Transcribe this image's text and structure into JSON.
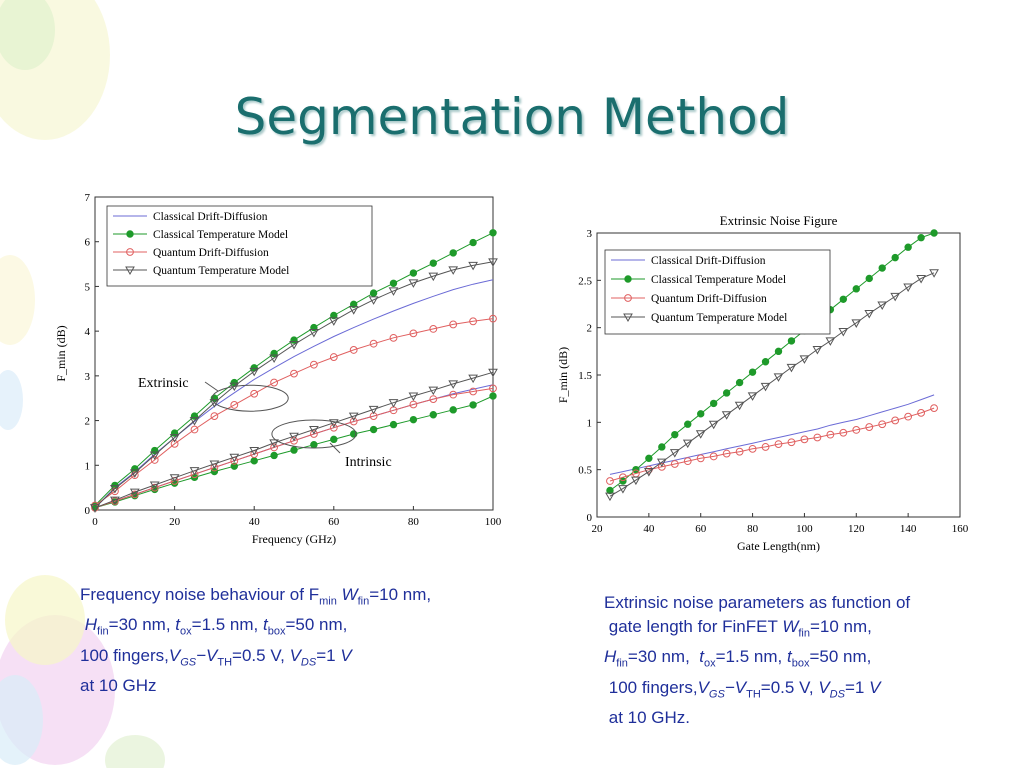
{
  "slide": {
    "title": "Segmentation Method"
  },
  "chart_data": [
    {
      "type": "line",
      "title": "",
      "xlabel": "Frequency (GHz)",
      "ylabel": "F_min (dB)",
      "xlim": [
        0,
        100
      ],
      "ylim": [
        0,
        7
      ],
      "x_ticks": [
        "0",
        "20",
        "40",
        "60",
        "80",
        "100"
      ],
      "y_ticks": [
        "0",
        "1",
        "2",
        "3",
        "4",
        "5",
        "6",
        "7"
      ],
      "grid": false,
      "legend_position": "top-left",
      "annotations": [
        "Extrinsic",
        "Intrinsic"
      ],
      "x": [
        0,
        5,
        10,
        15,
        20,
        25,
        30,
        35,
        40,
        45,
        50,
        55,
        60,
        65,
        70,
        75,
        80,
        85,
        90,
        95,
        100
      ],
      "series": [
        {
          "name": "Classical Drift-Diffusion",
          "group": "Extrinsic",
          "values": [
            0.05,
            0.5,
            0.85,
            1.25,
            1.62,
            1.98,
            2.32,
            2.62,
            2.92,
            3.18,
            3.43,
            3.66,
            3.88,
            4.08,
            4.27,
            4.45,
            4.62,
            4.78,
            4.93,
            5.05,
            5.15
          ]
        },
        {
          "name": "Classical Temperature Model",
          "group": "Extrinsic",
          "values": [
            0.1,
            0.55,
            0.92,
            1.33,
            1.72,
            2.1,
            2.5,
            2.85,
            3.18,
            3.5,
            3.8,
            4.08,
            4.35,
            4.6,
            4.85,
            5.07,
            5.3,
            5.52,
            5.75,
            5.98,
            6.2
          ]
        },
        {
          "name": "Quantum Drift-Diffusion",
          "group": "Extrinsic",
          "values": [
            0.1,
            0.42,
            0.78,
            1.12,
            1.48,
            1.8,
            2.1,
            2.35,
            2.6,
            2.85,
            3.05,
            3.25,
            3.42,
            3.58,
            3.72,
            3.85,
            3.95,
            4.05,
            4.15,
            4.22,
            4.28
          ]
        },
        {
          "name": "Quantum Temperature Model",
          "group": "Extrinsic",
          "values": [
            0.05,
            0.48,
            0.83,
            1.23,
            1.62,
            2.0,
            2.4,
            2.77,
            3.1,
            3.4,
            3.7,
            3.97,
            4.23,
            4.48,
            4.7,
            4.9,
            5.08,
            5.23,
            5.37,
            5.47,
            5.55
          ]
        },
        {
          "name": "Classical Drift-Diffusion",
          "group": "Intrinsic",
          "values": [
            0.05,
            0.2,
            0.35,
            0.5,
            0.65,
            0.8,
            0.95,
            1.1,
            1.25,
            1.4,
            1.55,
            1.7,
            1.84,
            1.98,
            2.1,
            2.23,
            2.36,
            2.48,
            2.6,
            2.7,
            2.8
          ]
        },
        {
          "name": "Classical Temperature Model",
          "group": "Intrinsic",
          "values": [
            0.05,
            0.18,
            0.32,
            0.46,
            0.6,
            0.73,
            0.86,
            0.98,
            1.1,
            1.22,
            1.34,
            1.46,
            1.58,
            1.7,
            1.8,
            1.91,
            2.02,
            2.13,
            2.24,
            2.35,
            2.55
          ]
        },
        {
          "name": "Quantum Drift-Diffusion",
          "group": "Intrinsic",
          "values": [
            0.05,
            0.2,
            0.35,
            0.5,
            0.65,
            0.8,
            0.95,
            1.1,
            1.25,
            1.4,
            1.55,
            1.7,
            1.84,
            1.98,
            2.1,
            2.23,
            2.36,
            2.48,
            2.58,
            2.65,
            2.72
          ]
        },
        {
          "name": "Quantum Temperature Model",
          "group": "Intrinsic",
          "values": [
            0.05,
            0.22,
            0.4,
            0.56,
            0.72,
            0.88,
            1.03,
            1.18,
            1.33,
            1.5,
            1.65,
            1.8,
            1.95,
            2.1,
            2.25,
            2.4,
            2.55,
            2.68,
            2.82,
            2.95,
            3.08
          ]
        }
      ]
    },
    {
      "type": "line",
      "title": "Extrinsic Noise Figure",
      "xlabel": "Gate Length(nm)",
      "ylabel": "F_min (dB)",
      "xlim": [
        20,
        160
      ],
      "ylim": [
        0,
        3
      ],
      "x_ticks": [
        "20",
        "40",
        "60",
        "80",
        "100",
        "120",
        "140",
        "160"
      ],
      "y_ticks": [
        "0",
        "0.5",
        "1",
        "1.5",
        "2",
        "2.5",
        "3"
      ],
      "grid": false,
      "legend_position": "top-left",
      "x": [
        25,
        30,
        35,
        40,
        45,
        50,
        55,
        60,
        65,
        70,
        75,
        80,
        85,
        90,
        95,
        100,
        105,
        110,
        115,
        120,
        125,
        130,
        135,
        140,
        145,
        150
      ],
      "series": [
        {
          "name": "Classical Drift-Diffusion",
          "values": [
            0.45,
            0.48,
            0.51,
            0.54,
            0.57,
            0.6,
            0.63,
            0.66,
            0.69,
            0.72,
            0.75,
            0.78,
            0.81,
            0.84,
            0.87,
            0.9,
            0.93,
            0.97,
            1.0,
            1.03,
            1.07,
            1.11,
            1.15,
            1.19,
            1.24,
            1.29
          ]
        },
        {
          "name": "Classical Temperature Model",
          "values": [
            0.28,
            0.38,
            0.5,
            0.62,
            0.74,
            0.87,
            0.98,
            1.09,
            1.2,
            1.31,
            1.42,
            1.53,
            1.64,
            1.75,
            1.86,
            1.97,
            2.08,
            2.19,
            2.3,
            2.41,
            2.52,
            2.63,
            2.74,
            2.85,
            2.95,
            3.0
          ]
        },
        {
          "name": "Quantum Drift-Diffusion",
          "values": [
            0.38,
            0.42,
            0.46,
            0.5,
            0.53,
            0.56,
            0.59,
            0.62,
            0.64,
            0.67,
            0.69,
            0.72,
            0.74,
            0.77,
            0.79,
            0.82,
            0.84,
            0.87,
            0.89,
            0.92,
            0.95,
            0.98,
            1.02,
            1.06,
            1.1,
            1.15
          ]
        },
        {
          "name": "Quantum Temperature Model",
          "values": [
            0.22,
            0.3,
            0.39,
            0.48,
            0.58,
            0.68,
            0.78,
            0.88,
            0.98,
            1.08,
            1.18,
            1.28,
            1.38,
            1.48,
            1.58,
            1.67,
            1.77,
            1.86,
            1.96,
            2.05,
            2.15,
            2.24,
            2.33,
            2.43,
            2.52,
            2.58
          ]
        }
      ]
    }
  ],
  "captions": {
    "left": {
      "l1_a": "Frequency noise behaviour of F",
      "l1_sub": "min",
      "l1_b": "W",
      "l1_sub2": "fin",
      "l1_c": "=10 nm,",
      "l2_a": "H",
      "l2_sub": "fin",
      "l2_b": "=30 nm,",
      "l2_c": "t",
      "l2_sub2": "ox",
      "l2_d": "=1.5 nm,",
      "l2_e": "t",
      "l2_sub3": "box",
      "l2_f": "=50 nm,",
      "l3_a": "100 fingers,",
      "l3_b": "V",
      "l3_sub": "GS",
      "l3_c": "−V",
      "l3_sub2": "TH",
      "l3_d": "=0.5 V,",
      "l3_e": "V",
      "l3_sub3": "DS",
      "l3_f": "=1",
      "l3_g": "V",
      "l4": "at 10 GHz"
    },
    "right": {
      "l1": "Extrinsic noise parameters as function of",
      "l2_a": "gate length for FinFET",
      "l2_b": "W",
      "l2_sub": "fin",
      "l2_c": "=10 nm,",
      "l3_a": "H",
      "l3_sub": "fin",
      "l3_b": "=30 nm,",
      "l3_c": "t",
      "l3_sub2": "ox",
      "l3_d": "=1.5 nm,",
      "l3_e": "t",
      "l3_sub3": "box",
      "l3_f": "=50 nm,",
      "l4_a": "100 fingers,",
      "l4_b": "V",
      "l4_sub": "GS",
      "l4_c": "−V",
      "l4_sub2": "TH",
      "l4_d": "=0.5 V,",
      "l4_e": "V",
      "l4_sub3": "DS",
      "l4_f": "=1",
      "l4_g": "V",
      "l5": "at 10 GHz."
    }
  },
  "colors": {
    "title": "#1a6e6e",
    "caption": "#1f2f9a",
    "classical_dd": "#6b6bd6",
    "classical_tm": "#1e9a2a",
    "quantum_dd": "#e06060",
    "quantum_tm": "#555555"
  }
}
